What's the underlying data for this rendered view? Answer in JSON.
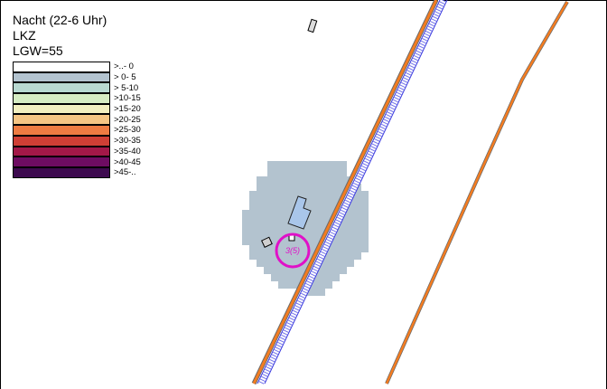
{
  "legend": {
    "title_line1": "Nacht (22-6 Uhr)",
    "title_line2": "LKZ",
    "title_line3": "LGW=55",
    "classes": [
      {
        "label": ">..- 0",
        "color": "#ffffff"
      },
      {
        "label": "> 0- 5",
        "color": "#b3c3cf"
      },
      {
        "label": "> 5-10",
        "color": "#b8d9d1"
      },
      {
        "label": ">10-15",
        "color": "#d6ecc3"
      },
      {
        "label": ">15-20",
        "color": "#f2efc0"
      },
      {
        "label": ">20-25",
        "color": "#f5c584"
      },
      {
        "label": ">25-30",
        "color": "#ee7c42"
      },
      {
        "label": ">30-35",
        "color": "#cf3f35"
      },
      {
        "label": ">35-40",
        "color": "#a31848"
      },
      {
        "label": ">40-45",
        "color": "#6e0c62"
      },
      {
        "label": ">45-..",
        "color": "#3d0a4f"
      }
    ]
  },
  "map": {
    "receiver_label": "3(5)",
    "colors": {
      "noise_area": "#b3c3cf",
      "road": "#f47c20",
      "rail": "#3a3adf",
      "receiver_ring": "#e010c8",
      "building_highlight": "#a9c6ea"
    }
  }
}
